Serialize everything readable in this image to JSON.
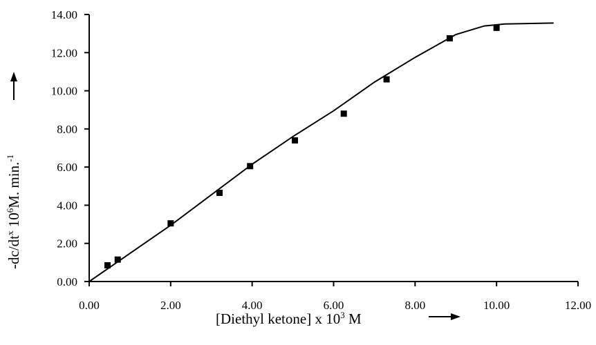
{
  "chart_data": {
    "type": "scatter",
    "xlabel": {
      "pre": "[Diethyl ketone] x 10",
      "sup": "3",
      "post": " M"
    },
    "ylabel": {
      "part1": "-dc/dt",
      "sup1": "x",
      "part2": " 10",
      "sup2": "6",
      "part3": "M. min.",
      "sup3": "-1"
    },
    "xlim": [
      0,
      12
    ],
    "ylim": [
      0,
      14
    ],
    "x_ticks": [
      "0.00",
      "2.00",
      "4.00",
      "6.00",
      "8.00",
      "10.00",
      "12.00"
    ],
    "y_ticks": [
      "0.00",
      "2.00",
      "4.00",
      "6.00",
      "8.00",
      "10.00",
      "12.00",
      "14.00"
    ],
    "grid": false,
    "points": {
      "x": [
        0.45,
        0.7,
        2.0,
        3.2,
        3.95,
        5.05,
        6.25,
        7.3,
        8.85,
        10.0
      ],
      "y": [
        0.85,
        1.15,
        3.05,
        4.65,
        6.05,
        7.4,
        8.8,
        10.6,
        12.75,
        13.3
      ]
    },
    "fit_line": {
      "x": [
        0,
        2.0,
        4.0,
        5.0,
        6.0,
        7.0,
        8.0,
        9.0,
        9.7,
        10.2,
        11.4
      ],
      "y": [
        0,
        2.95,
        6.15,
        7.6,
        8.95,
        10.45,
        11.75,
        12.95,
        13.4,
        13.5,
        13.55
      ]
    }
  }
}
